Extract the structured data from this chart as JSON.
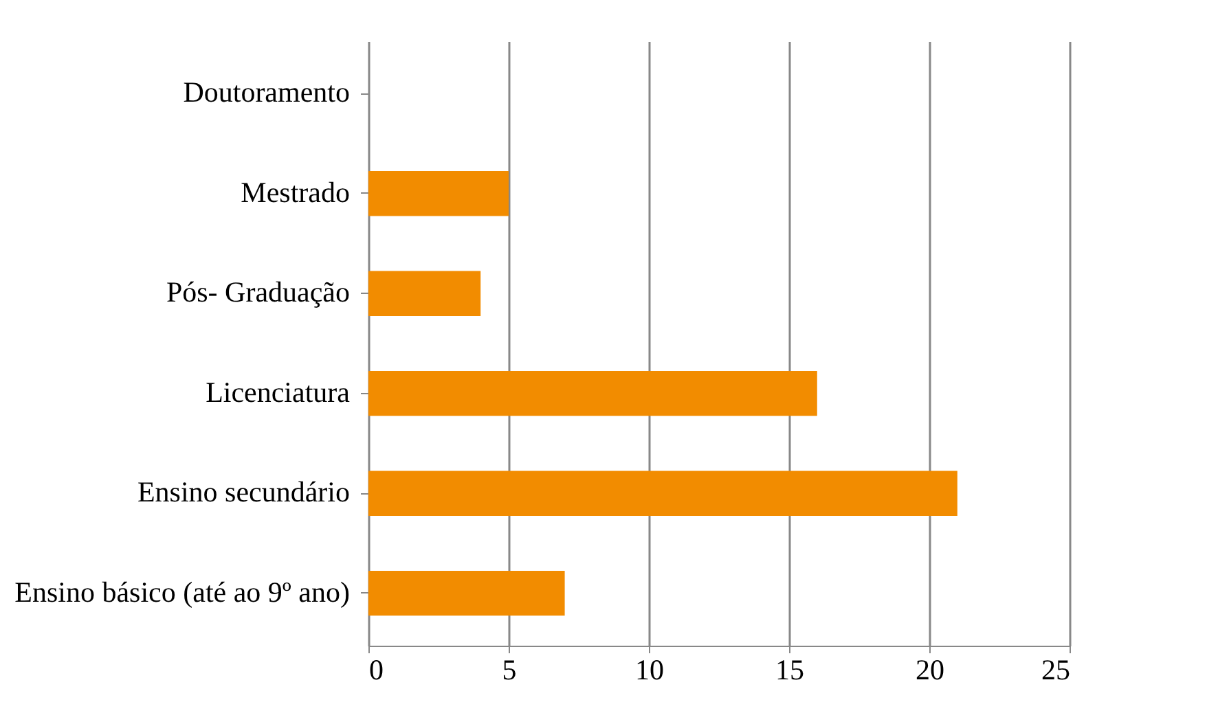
{
  "chart_data": {
    "type": "bar",
    "orientation": "horizontal",
    "categories": [
      "Doutoramento",
      "Mestrado",
      "Pós- Graduação",
      "Licenciatura",
      "Ensino secundário",
      "Ensino básico (até ao 9º ano)"
    ],
    "values": [
      0,
      5,
      4,
      16,
      21,
      7
    ],
    "color": "#f28c00",
    "xlim": [
      0,
      25
    ],
    "xticks": [
      0,
      5,
      10,
      15,
      20,
      25
    ],
    "grid": "x"
  }
}
